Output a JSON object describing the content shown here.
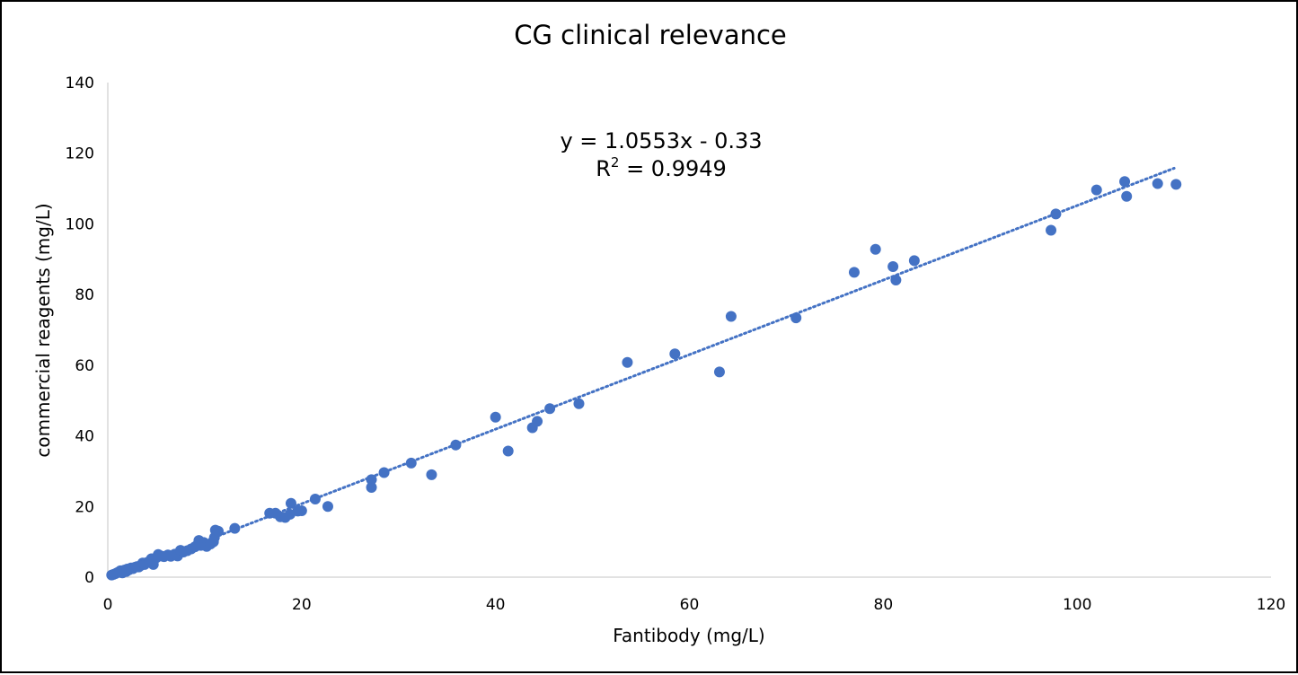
{
  "chart_data": {
    "type": "scatter",
    "title": "CG clinical relevance",
    "xlabel": "Fantibody (mg/L)",
    "ylabel": "commercial reagents (mg/L)",
    "xlim": [
      0,
      120
    ],
    "ylim": [
      0,
      140
    ],
    "x_ticks": [
      "0",
      "20",
      "40",
      "60",
      "80",
      "100",
      "120"
    ],
    "y_ticks": [
      "0",
      "20",
      "40",
      "60",
      "80",
      "100",
      "120",
      "140"
    ],
    "grid": false,
    "legend": "none",
    "marker_color": "#4472C4",
    "trendline": {
      "type": "linear",
      "slope": 1.0553,
      "intercept": -0.33,
      "x_range": [
        0.5,
        110
      ],
      "equation_text": "y = 1.0553x - 0.33",
      "r2_prefix": "R",
      "r2_sup": "2",
      "r2_suffix": " = 0.9949",
      "color": "#4472C4",
      "style": "dotted"
    },
    "points": [
      [
        0.4,
        0.6
      ],
      [
        0.6,
        0.8
      ],
      [
        0.8,
        1.0
      ],
      [
        1.0,
        1.3
      ],
      [
        1.2,
        1.5
      ],
      [
        1.3,
        1.8
      ],
      [
        1.5,
        1.2
      ],
      [
        1.7,
        2.0
      ],
      [
        1.9,
        1.6
      ],
      [
        2.0,
        2.3
      ],
      [
        2.2,
        2.1
      ],
      [
        2.4,
        2.6
      ],
      [
        2.6,
        2.4
      ],
      [
        2.8,
        2.8
      ],
      [
        3.0,
        3.0
      ],
      [
        3.2,
        2.9
      ],
      [
        3.4,
        3.3
      ],
      [
        3.6,
        4.0
      ],
      [
        3.8,
        3.6
      ],
      [
        4.0,
        4.1
      ],
      [
        4.3,
        4.5
      ],
      [
        4.5,
        5.2
      ],
      [
        4.7,
        3.6
      ],
      [
        5.0,
        5.5
      ],
      [
        5.2,
        6.4
      ],
      [
        5.5,
        6.0
      ],
      [
        5.8,
        5.8
      ],
      [
        6.2,
        6.3
      ],
      [
        6.5,
        5.9
      ],
      [
        6.9,
        6.5
      ],
      [
        7.2,
        6.0
      ],
      [
        7.5,
        7.6
      ],
      [
        7.8,
        7.1
      ],
      [
        8.2,
        7.5
      ],
      [
        8.6,
        8.0
      ],
      [
        9.0,
        8.6
      ],
      [
        9.3,
        9.3
      ],
      [
        9.4,
        10.4
      ],
      [
        9.6,
        9.0
      ],
      [
        9.9,
        9.8
      ],
      [
        10.2,
        8.7
      ],
      [
        10.6,
        9.4
      ],
      [
        10.9,
        10.0
      ],
      [
        11.0,
        11.2
      ],
      [
        11.1,
        13.3
      ],
      [
        11.4,
        13.0
      ],
      [
        13.1,
        13.8
      ],
      [
        16.7,
        18.1
      ],
      [
        17.3,
        18.1
      ],
      [
        17.8,
        17.1
      ],
      [
        18.3,
        16.9
      ],
      [
        18.8,
        17.8
      ],
      [
        18.9,
        20.9
      ],
      [
        19.6,
        18.7
      ],
      [
        20.0,
        18.8
      ],
      [
        21.4,
        22.1
      ],
      [
        22.7,
        20.0
      ],
      [
        27.2,
        27.6
      ],
      [
        27.2,
        25.4
      ],
      [
        28.5,
        29.6
      ],
      [
        31.3,
        32.3
      ],
      [
        33.4,
        29.0
      ],
      [
        35.9,
        37.4
      ],
      [
        40.0,
        45.3
      ],
      [
        41.3,
        35.7
      ],
      [
        43.8,
        42.3
      ],
      [
        44.3,
        44.1
      ],
      [
        45.6,
        47.7
      ],
      [
        48.6,
        49.1
      ],
      [
        53.6,
        60.8
      ],
      [
        58.5,
        63.2
      ],
      [
        63.1,
        58.1
      ],
      [
        64.3,
        73.8
      ],
      [
        71.0,
        73.4
      ],
      [
        77.0,
        86.3
      ],
      [
        79.2,
        92.8
      ],
      [
        81.0,
        87.9
      ],
      [
        81.3,
        84.1
      ],
      [
        83.2,
        89.6
      ],
      [
        97.3,
        98.2
      ],
      [
        97.8,
        102.8
      ],
      [
        102.0,
        109.6
      ],
      [
        104.9,
        112.0
      ],
      [
        105.1,
        107.8
      ],
      [
        108.3,
        111.4
      ],
      [
        110.2,
        111.2
      ]
    ]
  }
}
